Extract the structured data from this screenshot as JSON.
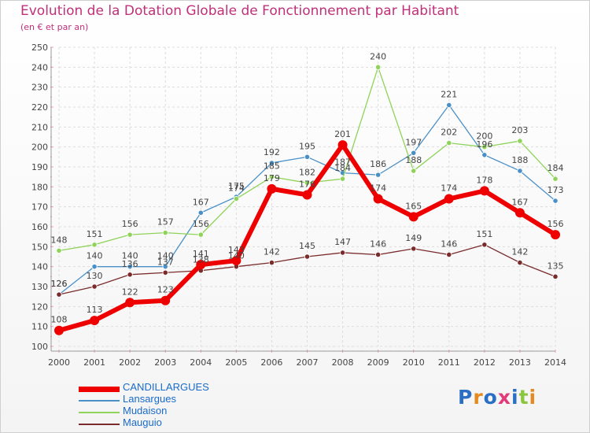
{
  "title": "Evolution de la Dotation Globale de Fonctionnement par Habitant",
  "subtitle": "(en € et par an)",
  "logo": {
    "text": "Proxiti",
    "letter_colors": [
      "#2a6fc4",
      "#e58a1f",
      "#2a6fc4",
      "#e23b7a",
      "#2a6fc4",
      "#8cc63f",
      "#e58a1f"
    ]
  },
  "chart_data": {
    "type": "line",
    "x": [
      "2000",
      "2001",
      "2002",
      "2003",
      "2004",
      "2005",
      "2006",
      "2007",
      "2008",
      "2009",
      "2010",
      "2011",
      "2012",
      "2013",
      "2014"
    ],
    "ylim": [
      100,
      250
    ],
    "yticks": [
      100,
      110,
      120,
      130,
      140,
      150,
      160,
      170,
      180,
      190,
      200,
      210,
      220,
      230,
      240,
      250
    ],
    "grid": true,
    "legend_position": "bottom-left",
    "series": [
      {
        "name": "CANDILLARGUES",
        "color": "#ee0000",
        "values": [
          108,
          113,
          122,
          123,
          141,
          143,
          179,
          176,
          201,
          174,
          165,
          174,
          178,
          167,
          156
        ]
      },
      {
        "name": "Lansargues",
        "color": "#4a90c8",
        "values": [
          126,
          140,
          140,
          140,
          167,
          175,
          192,
          195,
          187,
          186,
          197,
          221,
          196,
          188,
          173
        ]
      },
      {
        "name": "Mudaison",
        "color": "#8fd35a",
        "values": [
          148,
          151,
          156,
          157,
          156,
          174,
          185,
          182,
          184,
          240,
          188,
          202,
          200,
          203,
          184
        ]
      },
      {
        "name": "Mauguio",
        "color": "#7a2c2c",
        "values": [
          126,
          130,
          136,
          137,
          138,
          140,
          142,
          145,
          147,
          146,
          149,
          146,
          151,
          142,
          135
        ]
      }
    ]
  }
}
